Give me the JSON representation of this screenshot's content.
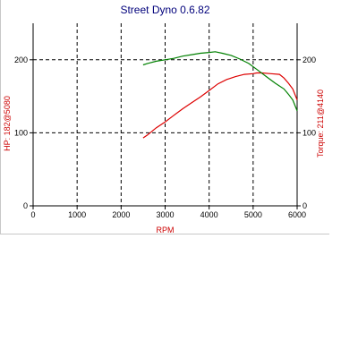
{
  "window": {
    "title": "Street Dyno 0.6.82"
  },
  "chart_data": {
    "type": "line",
    "title": "Street Dyno 0.6.82",
    "xlabel": "RPM",
    "ylabel_left": "HP: 182@5080",
    "ylabel_right": "Torque: 211@4140",
    "xlim": [
      0,
      6000
    ],
    "ylim": [
      0,
      250
    ],
    "xticks": [
      "0",
      "1000",
      "2000",
      "3000",
      "4000",
      "5000",
      "6000"
    ],
    "yticks_left": [
      "0",
      "100",
      "200"
    ],
    "yticks_right": [
      "0",
      "100",
      "200"
    ],
    "grid": true,
    "colors": {
      "hp": "#dd0000",
      "torque": "#008000",
      "axis_label": "#cc0000",
      "title": "#00007b"
    },
    "series": [
      {
        "name": "HP",
        "x": [
          2500,
          2600,
          2800,
          3000,
          3200,
          3400,
          3600,
          3800,
          4000,
          4200,
          4400,
          4600,
          4800,
          5000,
          5080,
          5200,
          5400,
          5600,
          5700,
          5800,
          5900,
          6000
        ],
        "y": [
          93,
          97,
          107,
          115,
          124,
          133,
          141,
          149,
          158,
          167,
          173,
          177,
          180,
          181,
          182,
          182,
          181,
          180,
          175,
          168,
          160,
          145
        ]
      },
      {
        "name": "Torque",
        "x": [
          2500,
          2600,
          2800,
          3000,
          3200,
          3400,
          3600,
          3800,
          4000,
          4140,
          4300,
          4500,
          4700,
          4900,
          5100,
          5300,
          5500,
          5700,
          5800,
          5900,
          6000
        ],
        "y": [
          193,
          195,
          198,
          200,
          202,
          205,
          207,
          209,
          210,
          211,
          209,
          206,
          201,
          195,
          186,
          177,
          168,
          160,
          153,
          145,
          130
        ]
      }
    ]
  }
}
